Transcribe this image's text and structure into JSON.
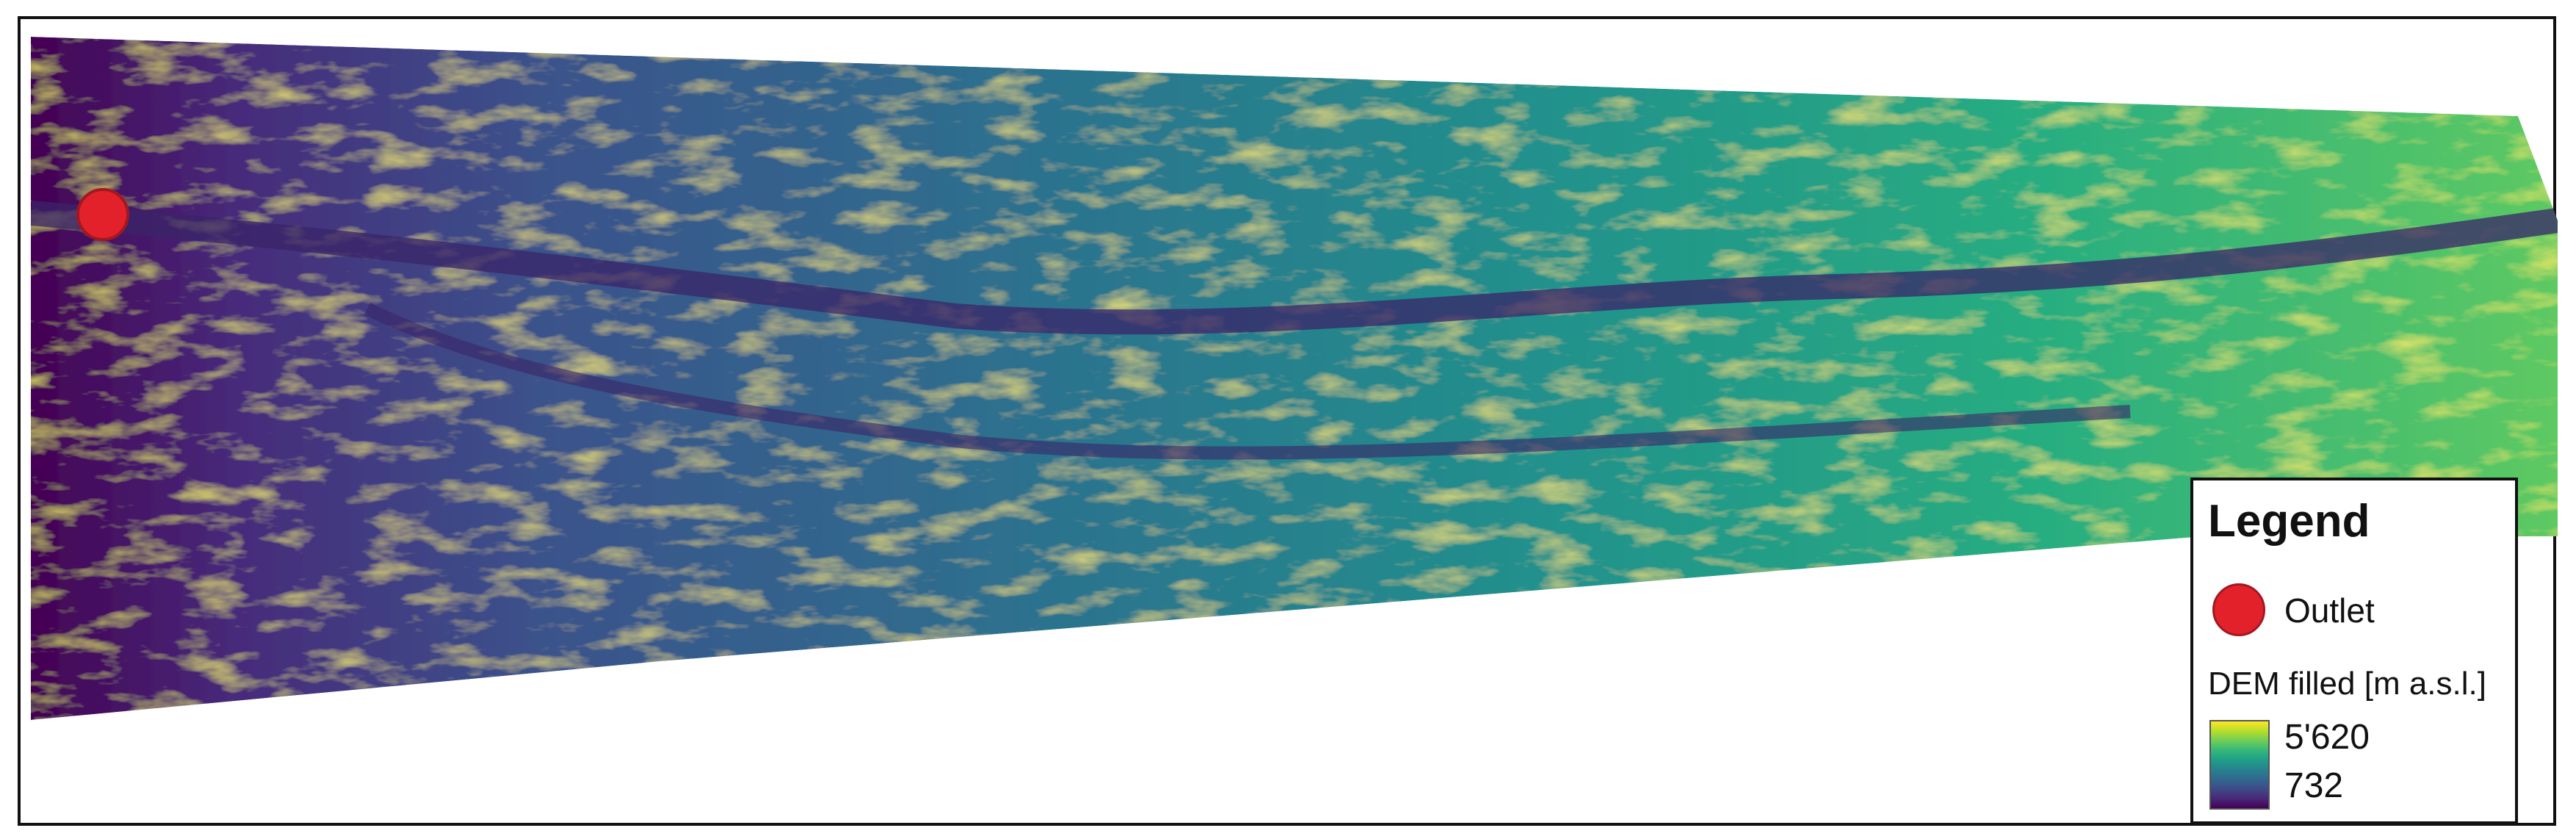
{
  "map": {
    "colormap": [
      "#440154",
      "#482878",
      "#3e4a89",
      "#31688e",
      "#26828e",
      "#1f9e89",
      "#35b779",
      "#6ece58",
      "#b5de2b",
      "#fde725"
    ],
    "outlet_color": "#e2212b"
  },
  "legend": {
    "title": "Legend",
    "outlet_label": "Outlet",
    "dem_title": "DEM filled [m a.s.l.]",
    "max_label": "5'620",
    "min_label": "732"
  }
}
